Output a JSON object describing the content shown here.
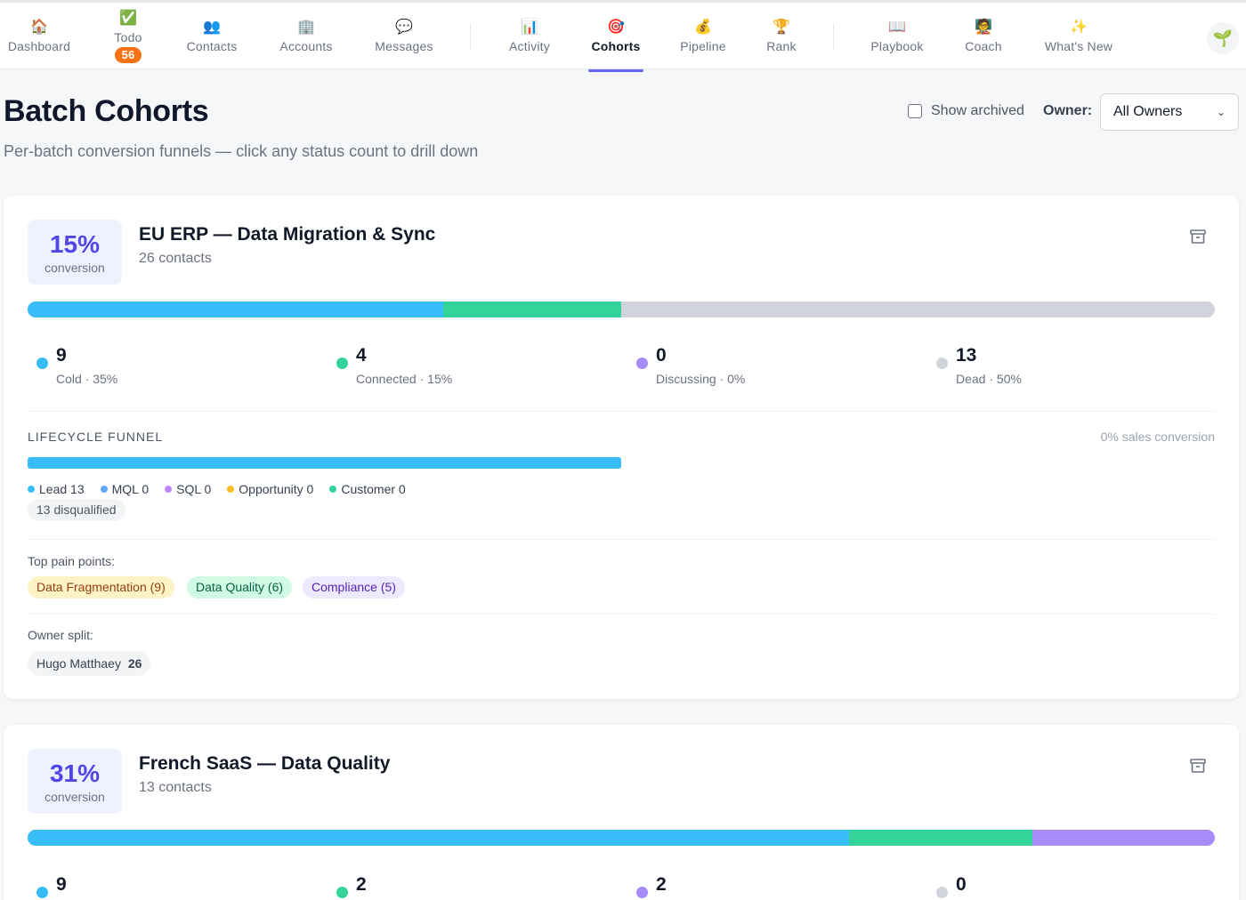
{
  "nav": {
    "items": [
      {
        "icon": "🏠",
        "label": "Dashboard",
        "icon_name": "house-icon"
      },
      {
        "icon": "✅",
        "label": "Todo",
        "icon_name": "check-icon",
        "badge": "56"
      },
      {
        "icon": "👥",
        "label": "Contacts",
        "icon_name": "people-icon"
      },
      {
        "icon": "🏢",
        "label": "Accounts",
        "icon_name": "building-icon"
      },
      {
        "icon": "💬",
        "label": "Messages",
        "icon_name": "speech-bubble-icon"
      },
      {
        "icon": "📊",
        "label": "Activity",
        "icon_name": "bar-chart-icon"
      },
      {
        "icon": "🎯",
        "label": "Cohorts",
        "icon_name": "target-icon",
        "active": true
      },
      {
        "icon": "💰",
        "label": "Pipeline",
        "icon_name": "money-bag-icon"
      },
      {
        "icon": "🏆",
        "label": "Rank",
        "icon_name": "trophy-icon"
      },
      {
        "icon": "📖",
        "label": "Playbook",
        "icon_name": "book-icon"
      },
      {
        "icon": "🧑‍🏫",
        "label": "Coach",
        "icon_name": "coach-icon"
      },
      {
        "icon": "✨",
        "label": "What's New",
        "icon_name": "sparkles-icon"
      }
    ],
    "avatar_icon": "🌱"
  },
  "header": {
    "title": "Batch Cohorts",
    "subtitle": "Per-batch conversion funnels — click any status count to drill down",
    "show_archived_label": "Show archived",
    "owner_label": "Owner:",
    "owner_value": "All Owners"
  },
  "colors": {
    "cold": "#38bdf8",
    "connected": "#34d399",
    "discussing": "#a78bfa",
    "dead": "#d1d5db",
    "accent": "#4f46e5"
  },
  "cohorts": [
    {
      "conversion": "15%",
      "conversion_label": "conversion",
      "title": "EU ERP — Data Migration & Sync",
      "contacts": "26 contacts",
      "segments": [
        {
          "key": "cold",
          "fraction": 0.35
        },
        {
          "key": "connected",
          "fraction": 0.15
        },
        {
          "key": "discussing",
          "fraction": 0.0
        },
        {
          "key": "dead",
          "fraction": 0.5
        }
      ],
      "stats": [
        {
          "num": "9",
          "cap": "Cold · 35%"
        },
        {
          "num": "4",
          "cap": "Connected · 15%"
        },
        {
          "num": "0",
          "cap": "Discussing · 0%"
        },
        {
          "num": "13",
          "cap": "Dead · 50%"
        }
      ],
      "lifecycle": {
        "title": "LIFECYCLE FUNNEL",
        "sales_conversion": "0% sales conversion",
        "bar_fraction": 0.5,
        "legend": [
          {
            "label": "Lead 13",
            "color": "#38bdf8"
          },
          {
            "label": "MQL 0",
            "color": "#60a5fa"
          },
          {
            "label": "SQL 0",
            "color": "#c084fc"
          },
          {
            "label": "Opportunity 0",
            "color": "#fbbf24"
          },
          {
            "label": "Customer 0",
            "color": "#34d399"
          }
        ],
        "disqualified": "13 disqualified"
      },
      "pain_points_label": "Top pain points:",
      "pain_points": [
        {
          "label": "Data Fragmentation (9)",
          "bg": "#fef3c7",
          "fg": "#92400e"
        },
        {
          "label": "Data Quality (6)",
          "bg": "#d1fae5",
          "fg": "#065f46"
        },
        {
          "label": "Compliance (5)",
          "bg": "#ede9fe",
          "fg": "#5b21b6"
        }
      ],
      "owner_split_label": "Owner split:",
      "owners": [
        {
          "name": "Hugo Matthaey",
          "count": "26"
        }
      ]
    },
    {
      "conversion": "31%",
      "conversion_label": "conversion",
      "title": "French SaaS — Data Quality",
      "contacts": "13 contacts",
      "segments": [
        {
          "key": "cold",
          "fraction": 0.692
        },
        {
          "key": "connected",
          "fraction": 0.154
        },
        {
          "key": "discussing",
          "fraction": 0.154
        },
        {
          "key": "dead",
          "fraction": 0.0
        }
      ],
      "stats": [
        {
          "num": "9"
        },
        {
          "num": "2"
        },
        {
          "num": "2"
        },
        {
          "num": "0"
        }
      ]
    }
  ]
}
